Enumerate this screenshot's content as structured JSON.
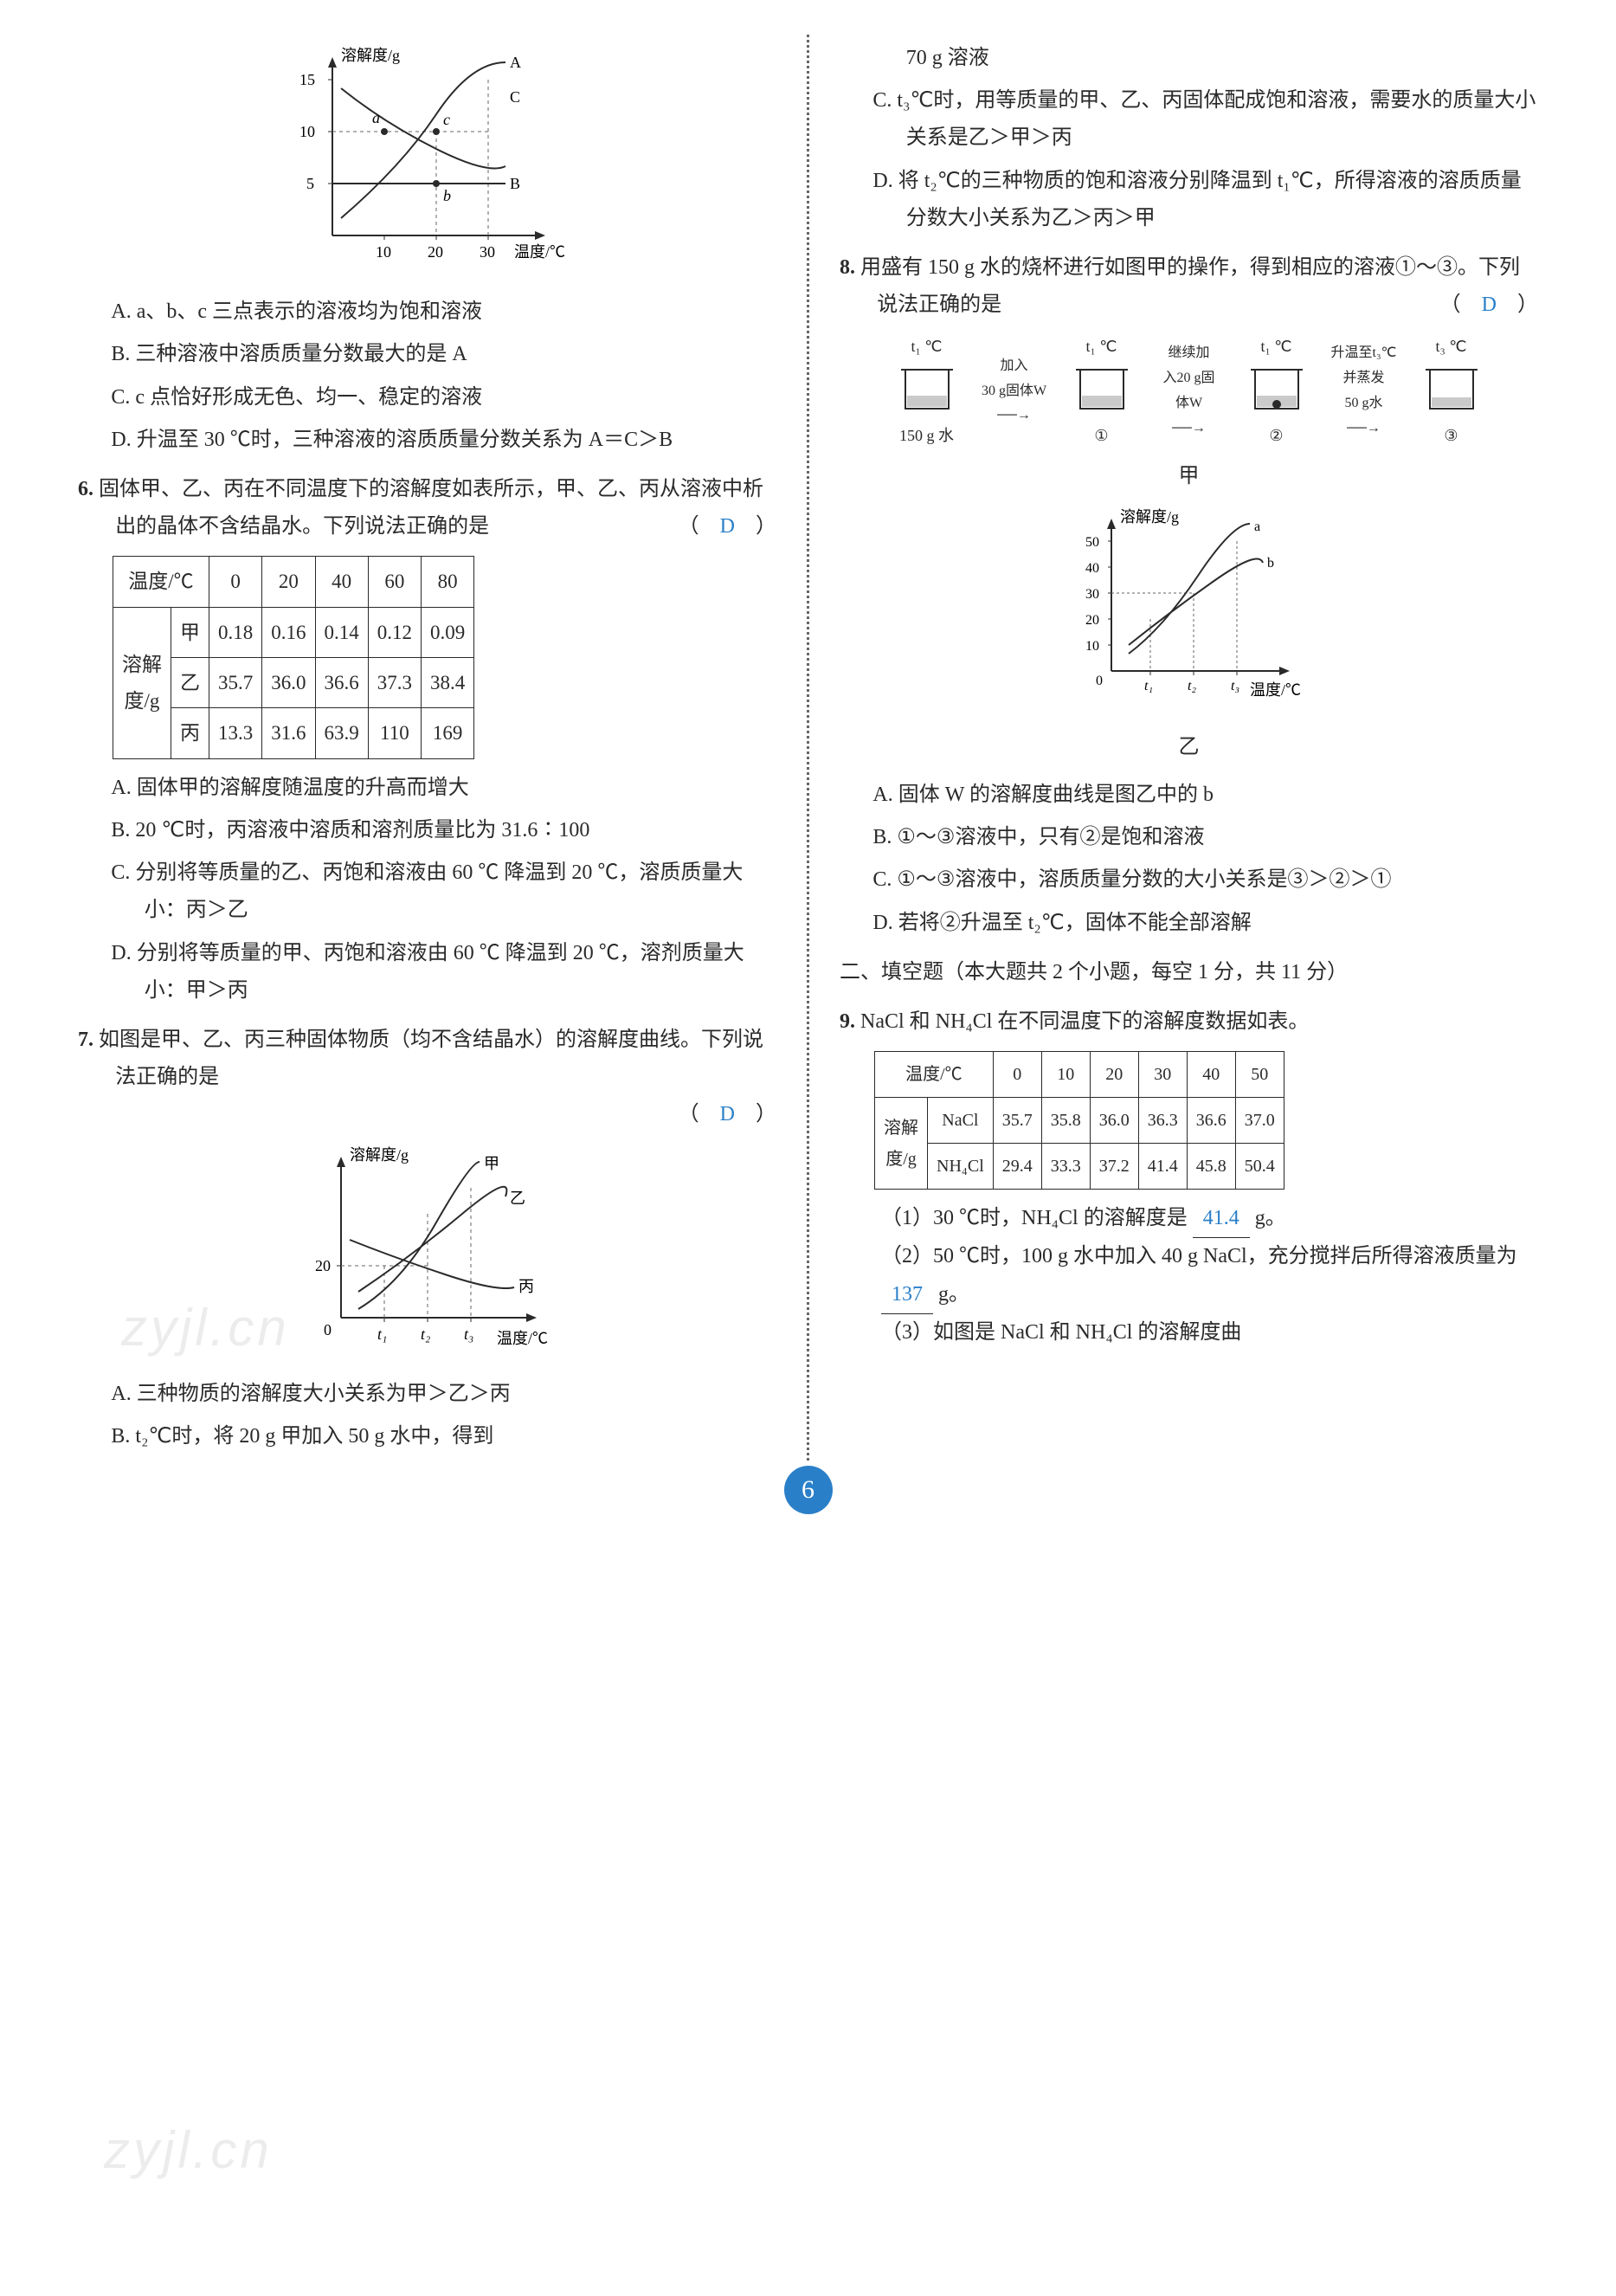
{
  "page_number": "6",
  "watermark_text": "zyjl.cn",
  "answer_color": "#2a7fc9",
  "chart5": {
    "type": "line",
    "y_label": "溶解度/g",
    "x_label": "温度/℃",
    "y_ticks": [
      5,
      10,
      15
    ],
    "x_ticks": [
      10,
      20,
      30
    ],
    "series": [
      {
        "name": "A",
        "color": "#2a2a2a",
        "points": [
          [
            5,
            4
          ],
          [
            15,
            9
          ],
          [
            25,
            13
          ],
          [
            30,
            15
          ]
        ]
      },
      {
        "name": "B",
        "color": "#2a2a2a",
        "points": [
          [
            0,
            5
          ],
          [
            30,
            5
          ]
        ],
        "flat": true
      },
      {
        "name": "C",
        "color": "#2a2a2a",
        "points": [
          [
            0,
            14
          ],
          [
            10,
            10
          ],
          [
            20,
            7
          ],
          [
            30,
            6
          ]
        ]
      }
    ],
    "point_a": "a",
    "point_b": "b",
    "point_c": "c",
    "grid_color": "#888",
    "axis_color": "#2a2a2a"
  },
  "q5": {
    "opt_a": "A. a、b、c 三点表示的溶液均为饱和溶液",
    "opt_b": "B. 三种溶液中溶质质量分数最大的是 A",
    "opt_c": "C. c 点恰好形成无色、均一、稳定的溶液",
    "opt_d": "D. 升温至 30 ℃时，三种溶液的溶质质量分数关系为 A＝C＞B"
  },
  "q6": {
    "number": "6.",
    "stem": "固体甲、乙、丙在不同温度下的溶解度如表所示，甲、乙、丙从溶液中析出的晶体不含结晶水。下列说法正确的是",
    "answer": "D",
    "table": {
      "corner_top": "温度/℃",
      "corner_left": "溶解度/g",
      "temps": [
        "0",
        "20",
        "40",
        "60",
        "80"
      ],
      "rows": [
        {
          "label": "甲",
          "vals": [
            "0.18",
            "0.16",
            "0.14",
            "0.12",
            "0.09"
          ]
        },
        {
          "label": "乙",
          "vals": [
            "35.7",
            "36.0",
            "36.6",
            "37.3",
            "38.4"
          ]
        },
        {
          "label": "丙",
          "vals": [
            "13.3",
            "31.6",
            "63.9",
            "110",
            "169"
          ]
        }
      ]
    },
    "opt_a": "A. 固体甲的溶解度随温度的升高而增大",
    "opt_b": "B. 20 ℃时，丙溶液中溶质和溶剂质量比为 31.6∶100",
    "opt_c": "C. 分别将等质量的乙、丙饱和溶液由 60 ℃ 降温到 20 ℃，溶质质量大小：丙＞乙",
    "opt_d": "D. 分别将等质量的甲、丙饱和溶液由 60 ℃ 降温到 20 ℃，溶剂质量大小：甲＞丙"
  },
  "q7": {
    "number": "7.",
    "stem": "如图是甲、乙、丙三种固体物质（均不含结晶水）的溶解度曲线。下列说法正确的是",
    "answer": "D",
    "chart": {
      "type": "line",
      "y_label": "溶解度/g",
      "x_label": "温度/℃",
      "y_ticks": [
        0,
        20
      ],
      "x_ticks_labels": [
        "t₁",
        "t₂",
        "t₃"
      ],
      "series_names": [
        "甲",
        "乙",
        "丙"
      ],
      "axis_color": "#2a2a2a"
    },
    "opt_a": "A. 三种物质的溶解度大小关系为甲＞乙＞丙",
    "opt_b": "B. t₂℃时，将 20 g 甲加入 50 g 水中，得到",
    "opt_b_cont": "70 g 溶液",
    "opt_c": "C. t₃℃时，用等质量的甲、乙、丙固体配成饱和溶液，需要水的质量大小关系是乙＞甲＞丙",
    "opt_d": "D. 将 t₂℃的三种物质的饱和溶液分别降温到 t₁℃，所得溶液的溶质质量分数大小关系为乙＞丙＞甲"
  },
  "q8": {
    "number": "8.",
    "stem": "用盛有 150 g 水的烧杯进行如图甲的操作，得到相应的溶液①～③。下列说法正确的是",
    "answer": "D",
    "flow": {
      "start_top": "t₁ ℃",
      "start_bottom": "150 g 水",
      "step1_top": "加入",
      "step1_bottom": "30 g固体W",
      "b1_top": "t₁ ℃",
      "b1_label": "①",
      "step2_top": "继续加",
      "step2_mid": "入20 g固",
      "step2_bottom": "体W",
      "b2_top": "t₁ ℃",
      "b2_label": "②",
      "step3_top": "升温至t₃℃",
      "step3_mid": "并蒸发",
      "step3_bottom": "50 g水",
      "b3_top": "t₃ ℃",
      "b3_label": "③",
      "caption": "甲"
    },
    "chart": {
      "type": "line",
      "y_label": "溶解度/g",
      "x_label": "温度/℃",
      "y_ticks": [
        0,
        10,
        20,
        30,
        40,
        50
      ],
      "x_ticks_labels": [
        "t₁",
        "t₂",
        "t₃"
      ],
      "series_names": [
        "a",
        "b"
      ],
      "caption": "乙",
      "axis_color": "#2a2a2a"
    },
    "opt_a": "A. 固体 W 的溶解度曲线是图乙中的 b",
    "opt_b": "B. ①～③溶液中，只有②是饱和溶液",
    "opt_c": "C. ①～③溶液中，溶质质量分数的大小关系是③＞②＞①",
    "opt_d": "D. 若将②升温至 t₂℃，固体不能全部溶解"
  },
  "section2": {
    "title": "二、填空题（本大题共 2 个小题，每空 1 分，共 11 分）"
  },
  "q9": {
    "number": "9.",
    "stem": "NaCl 和 NH₄Cl 在不同温度下的溶解度数据如表。",
    "table": {
      "corner_top": "温度/℃",
      "corner_left": "溶解度/g",
      "temps": [
        "0",
        "10",
        "20",
        "30",
        "40",
        "50"
      ],
      "rows": [
        {
          "label": "NaCl",
          "vals": [
            "35.7",
            "35.8",
            "36.0",
            "36.3",
            "36.6",
            "37.0"
          ]
        },
        {
          "label": "NH₄Cl",
          "vals": [
            "29.4",
            "33.3",
            "37.2",
            "41.4",
            "45.8",
            "50.4"
          ]
        }
      ]
    },
    "sub1_pre": "（1）30 ℃时，NH₄Cl 的溶解度是",
    "sub1_ans": "41.4",
    "sub1_post": "g。",
    "sub2_pre": "（2）50 ℃时，100 g 水中加入 40 g NaCl，充分搅拌后所得溶液质量为",
    "sub2_ans": "137",
    "sub2_post": "g。",
    "sub3": "（3）如图是 NaCl 和 NH₄Cl 的溶解度曲"
  }
}
